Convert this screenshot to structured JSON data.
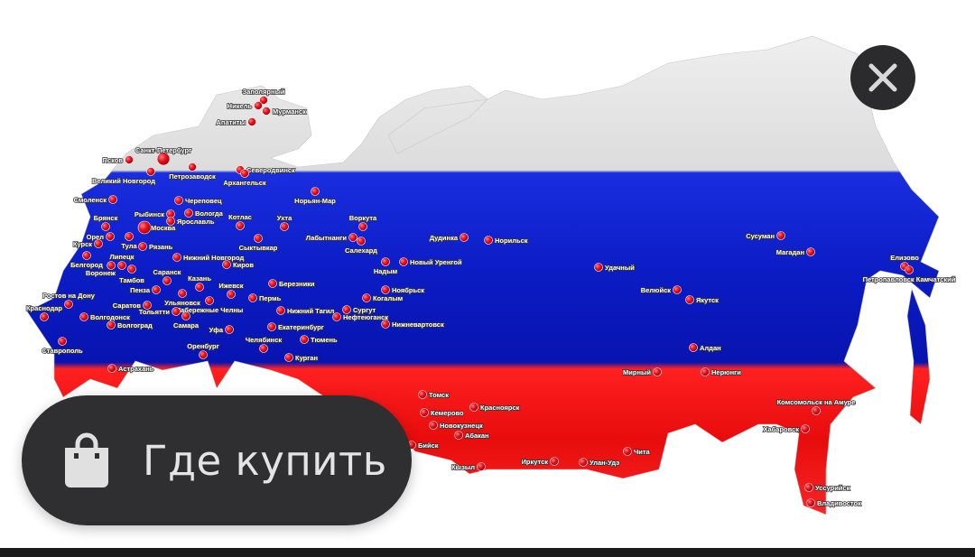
{
  "colors": {
    "white": "#f2f2f2",
    "blue": "#0a1fd0",
    "red": "#f01818",
    "dot": "#e8101c",
    "button_bg": "#2f2f31"
  },
  "map": {
    "cities": [
      "Заполярный",
      "Никель",
      "Мурманск",
      "Апатиты",
      "Санкт-Петербург",
      "Псков",
      "Великий Новгород",
      "Петрозаводск",
      "Северодвинск",
      "Архангельск",
      "Смоленск",
      "Череповец",
      "Рыбинск",
      "Вологда",
      "Ярославль",
      "Москва",
      "Брянск",
      "Орел",
      "Курск",
      "Тула",
      "Рязань",
      "Белгород",
      "Липецк",
      "Воронеж",
      "Тамбов",
      "Нижний Новгород",
      "Киров",
      "Саранск",
      "Пенза",
      "Казань",
      "Ижевск",
      "Березники",
      "Пермь",
      "Ульяновск",
      "Набережные Челны",
      "Ростов на Дону",
      "Краснодар",
      "Волгодонск",
      "Саратов",
      "Тольятти",
      "Самара",
      "Нижний Тагил",
      "Волгоград",
      "Екатеринбург",
      "Уфа",
      "Тюмень",
      "Челябинск",
      "Ставрополь",
      "Оренбург",
      "Курган",
      "Астрахань",
      "Норьян-Мар",
      "Котлас",
      "Ухта",
      "Сыктывкар",
      "Лабытнанги",
      "Воркута",
      "Салехард",
      "Дудинка",
      "Норильск",
      "Надым",
      "Новый Уренгой",
      "Ноябрьск",
      "Когалым",
      "Сургут",
      "Нефтеюганск",
      "Нижневартовск",
      "Томск",
      "Кемерово",
      "Новокузнецк",
      "Абакан",
      "Бийск",
      "Красноярск",
      "Кызыл",
      "Иркутск",
      "Улан-Удэ",
      "Чита",
      "Сусуман",
      "Магадан",
      "Елизово",
      "Петропавловск Камчатский",
      "Удачный",
      "Велюйск",
      "Якутск",
      "Алдан",
      "Мирный",
      "Нерюнги",
      "Комсомольск на Амуре",
      "Хабаровск",
      "Уссурийск",
      "Владивосток"
    ]
  },
  "close_button": {
    "icon": "close-icon"
  },
  "buy_button": {
    "label": "Где купить",
    "icon": "shopping-bag-icon"
  }
}
